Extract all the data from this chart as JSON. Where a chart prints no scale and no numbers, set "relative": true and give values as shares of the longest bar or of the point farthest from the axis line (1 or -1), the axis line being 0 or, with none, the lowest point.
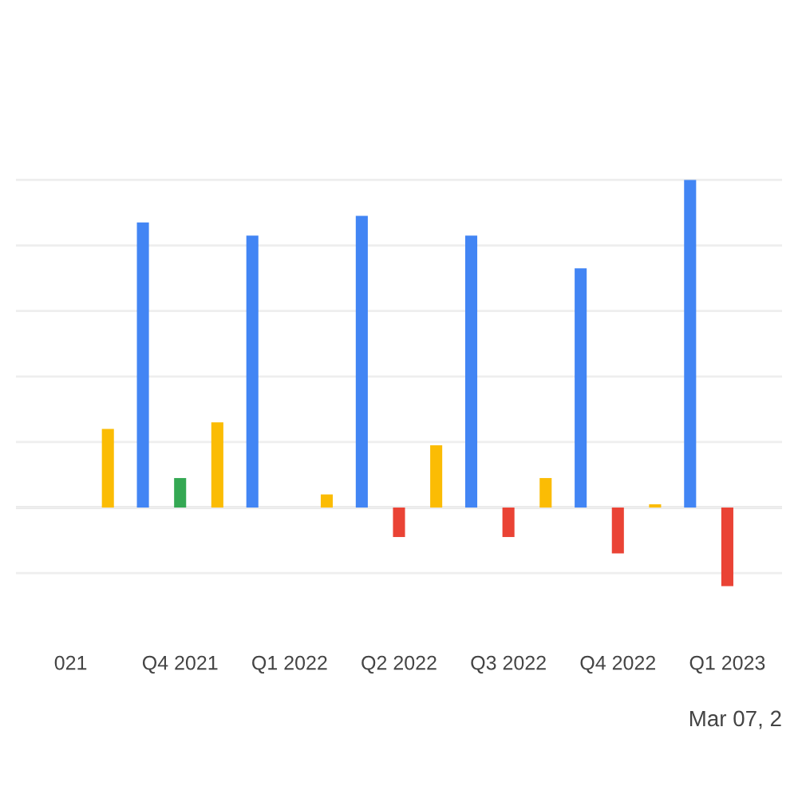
{
  "chart_data": {
    "type": "bar",
    "relative": true,
    "grid": "y",
    "categories": [
      "021",
      "Q4 2021",
      "Q1 2022",
      "Q2 2022",
      "Q3 2022",
      "Q4 2022",
      "Q1 2023"
    ],
    "series": [
      {
        "color": "#4285f4",
        "values": [
          null,
          0.87,
          0.83,
          0.89,
          0.83,
          0.73,
          1.0
        ]
      },
      {
        "colors": [
          "#34a853",
          "#34a853",
          "#34a853",
          "#ea4335",
          "#ea4335",
          "#ea4335",
          "#ea4335"
        ],
        "values": [
          null,
          0.09,
          null,
          -0.09,
          -0.09,
          -0.14,
          -0.24
        ]
      },
      {
        "color": "#fbbc04",
        "values": [
          0.24,
          0.26,
          0.04,
          0.19,
          0.09,
          0.01,
          null
        ]
      }
    ],
    "annotations": [
      "Mar 07, 2"
    ]
  }
}
